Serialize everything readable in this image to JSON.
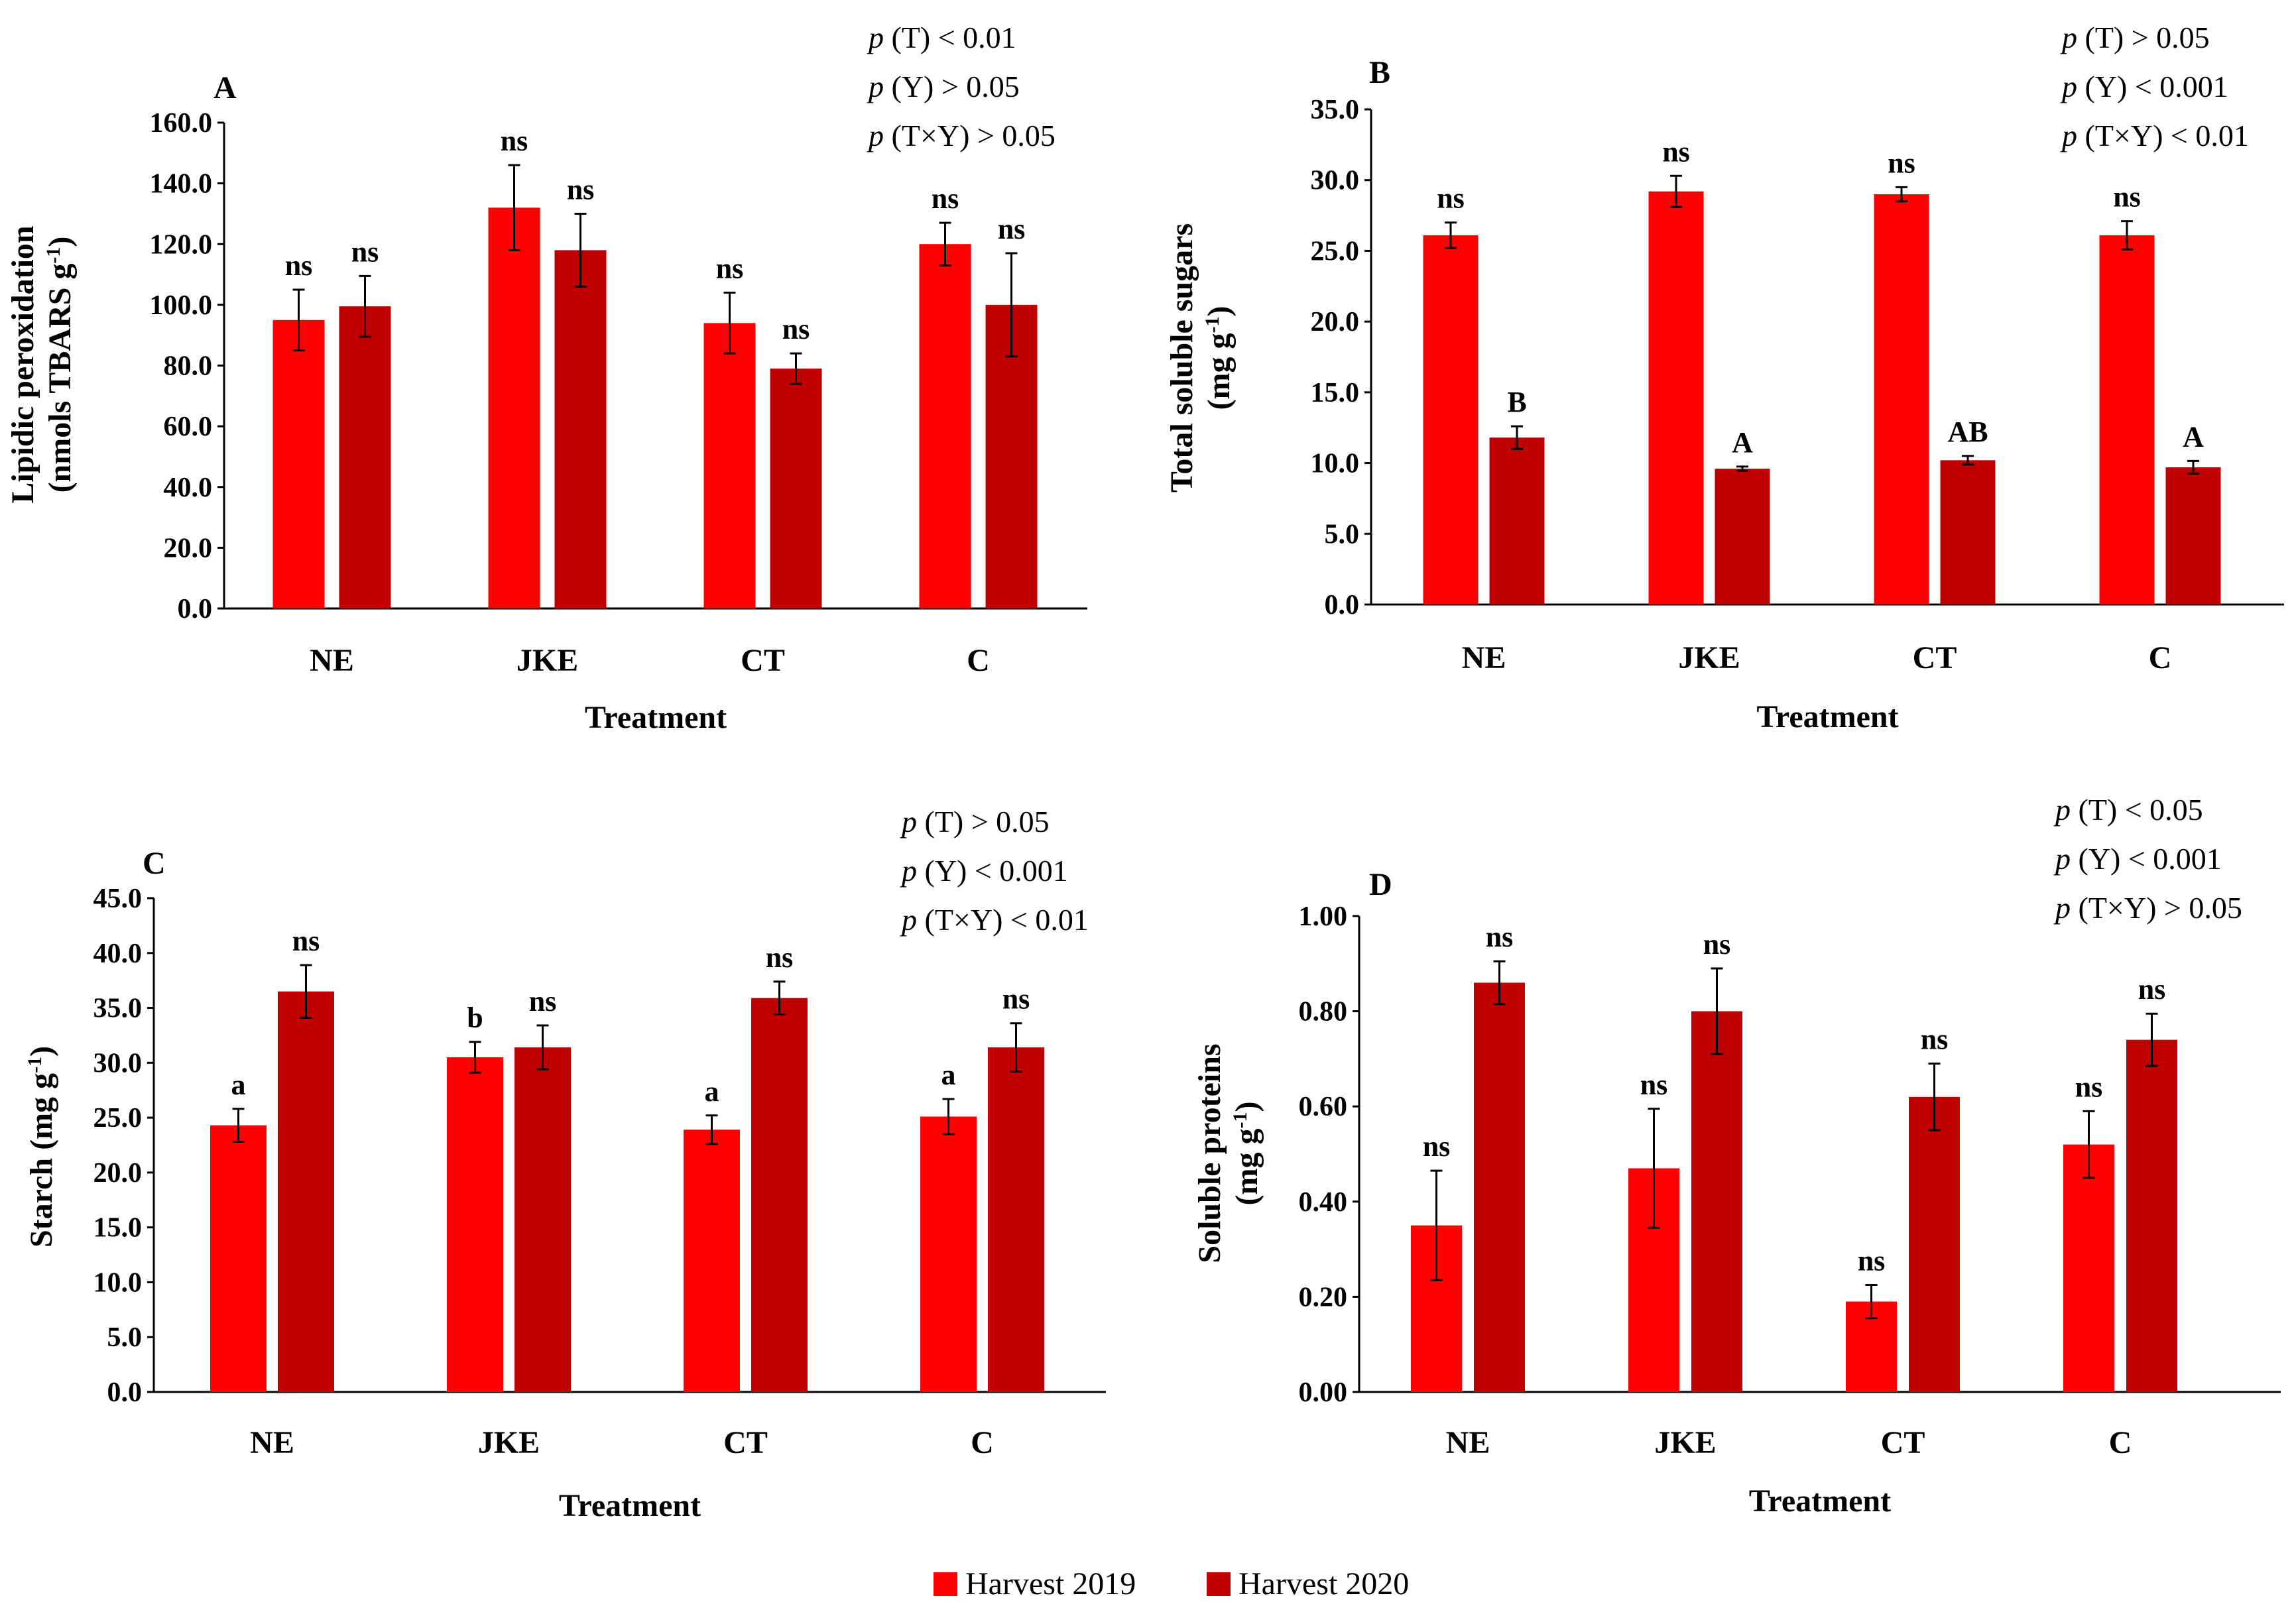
{
  "colors": {
    "harvest_2019": "#ff0000",
    "harvest_2020": "#c00000",
    "axis": "#000000",
    "error_bar": "#000000"
  },
  "legend": {
    "items": [
      "Harvest 2019",
      "Harvest 2020"
    ]
  },
  "chart_data": [
    {
      "type": "bar",
      "panel_letter": "A",
      "xlabel": "Treatment",
      "ylabel_lines": [
        "Lipidic peroxidation",
        "(nmols TBARS g",
        "-1",
        ")"
      ],
      "categories": [
        "NE",
        "JKE",
        "CT",
        "C"
      ],
      "ylim": [
        0,
        160
      ],
      "yticks": [
        "0.0",
        "20.0",
        "40.0",
        "60.0",
        "80.0",
        "100.0",
        "120.0",
        "140.0",
        "160.0"
      ],
      "series": [
        {
          "name": "Harvest 2019",
          "values": [
            95,
            132,
            94,
            120
          ],
          "errors": [
            10,
            14,
            10,
            7
          ],
          "labels": [
            "ns",
            "ns",
            "ns",
            "ns"
          ]
        },
        {
          "name": "Harvest 2020",
          "values": [
            99.5,
            118,
            79,
            100
          ],
          "errors": [
            10,
            12,
            5,
            17
          ],
          "labels": [
            "ns",
            "ns",
            "ns",
            "ns"
          ]
        }
      ],
      "stats": [
        {
          "p": "p",
          "rest": " (T) < 0.01"
        },
        {
          "p": "p",
          "rest": " (Y) > 0.05"
        },
        {
          "p": "p",
          "rest": " (T×Y) > 0.05"
        }
      ]
    },
    {
      "type": "bar",
      "panel_letter": "B",
      "xlabel": "Treatment",
      "ylabel_lines": [
        "Total soluble sugars",
        "(mg g",
        "-1",
        ")"
      ],
      "categories": [
        "NE",
        "JKE",
        "CT",
        "C"
      ],
      "ylim": [
        0,
        35
      ],
      "yticks": [
        "0.0",
        "5.0",
        "10.0",
        "15.0",
        "20.0",
        "25.0",
        "30.0",
        "35.0"
      ],
      "series": [
        {
          "name": "Harvest 2019",
          "values": [
            26.1,
            29.2,
            29.0,
            26.1
          ],
          "errors": [
            0.9,
            1.1,
            0.5,
            1.0
          ],
          "labels": [
            "ns",
            "ns",
            "ns",
            "ns"
          ]
        },
        {
          "name": "Harvest 2020",
          "values": [
            11.8,
            9.6,
            10.2,
            9.7
          ],
          "errors": [
            0.8,
            0.15,
            0.3,
            0.45
          ],
          "labels": [
            "B",
            "A",
            "AB",
            "A"
          ]
        }
      ],
      "stats": [
        {
          "p": "p",
          "rest": " (T) > 0.05"
        },
        {
          "p": "p",
          "rest": " (Y) < 0.001"
        },
        {
          "p": "p",
          "rest": " (T×Y) < 0.01"
        }
      ]
    },
    {
      "type": "bar",
      "panel_letter": "C",
      "xlabel": "Treatment",
      "ylabel_lines": [
        "Starch (mg g",
        "-1",
        ")"
      ],
      "categories": [
        "NE",
        "JKE",
        "CT",
        "C"
      ],
      "ylim": [
        0,
        45
      ],
      "yticks": [
        "0.0",
        "5.0",
        "10.0",
        "15.0",
        "20.0",
        "25.0",
        "30.0",
        "35.0",
        "40.0",
        "45.0"
      ],
      "series": [
        {
          "name": "Harvest 2019",
          "values": [
            24.3,
            30.5,
            23.9,
            25.1
          ],
          "errors": [
            1.5,
            1.4,
            1.3,
            1.6
          ],
          "labels": [
            "a",
            "b",
            "a",
            "a"
          ]
        },
        {
          "name": "Harvest 2020",
          "values": [
            36.5,
            31.4,
            35.9,
            31.4
          ],
          "errors": [
            2.4,
            2.0,
            1.5,
            2.2
          ],
          "labels": [
            "ns",
            "ns",
            "ns",
            "ns"
          ]
        }
      ],
      "stats": [
        {
          "p": "p",
          "rest": " (T) > 0.05"
        },
        {
          "p": "p",
          "rest": " (Y) < 0.001"
        },
        {
          "p": "p",
          "rest": " (T×Y) < 0.01"
        }
      ]
    },
    {
      "type": "bar",
      "panel_letter": "D",
      "xlabel": "Treatment",
      "ylabel_lines": [
        "Soluble proteins",
        "(mg g",
        "-1",
        ")"
      ],
      "categories": [
        "NE",
        "JKE",
        "CT",
        "C"
      ],
      "ylim": [
        0,
        1.0
      ],
      "yticks": [
        "0.00",
        "0.20",
        "0.40",
        "0.60",
        "0.80",
        "1.00"
      ],
      "series": [
        {
          "name": "Harvest 2019",
          "values": [
            0.35,
            0.47,
            0.19,
            0.52
          ],
          "errors": [
            0.115,
            0.125,
            0.035,
            0.07
          ],
          "labels": [
            "ns",
            "ns",
            "ns",
            "ns"
          ]
        },
        {
          "name": "Harvest 2020",
          "values": [
            0.86,
            0.8,
            0.62,
            0.74
          ],
          "errors": [
            0.045,
            0.09,
            0.07,
            0.055
          ],
          "labels": [
            "ns",
            "ns",
            "ns",
            "ns"
          ]
        }
      ],
      "stats": [
        {
          "p": "p",
          "rest": " (T) < 0.05"
        },
        {
          "p": "p",
          "rest": " (Y) < 0.001"
        },
        {
          "p": "p",
          "rest": " (T×Y) > 0.05"
        }
      ]
    }
  ]
}
